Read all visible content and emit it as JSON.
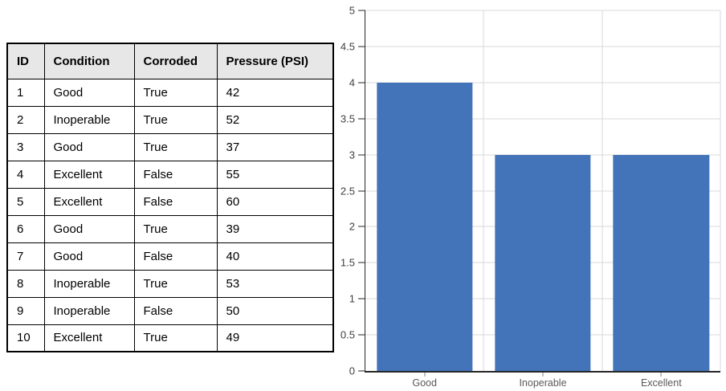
{
  "table": {
    "headers": [
      "ID",
      "Condition",
      "Corroded",
      "Pressure (PSI)"
    ],
    "rows": [
      [
        "1",
        "Good",
        "True",
        "42"
      ],
      [
        "2",
        "Inoperable",
        "True",
        "52"
      ],
      [
        "3",
        "Good",
        "True",
        "37"
      ],
      [
        "4",
        "Excellent",
        "False",
        "55"
      ],
      [
        "5",
        "Excellent",
        "False",
        "60"
      ],
      [
        "6",
        "Good",
        "True",
        "39"
      ],
      [
        "7",
        "Good",
        "False",
        "40"
      ],
      [
        "8",
        "Inoperable",
        "True",
        "53"
      ],
      [
        "9",
        "Inoperable",
        "False",
        "50"
      ],
      [
        "10",
        "Excellent",
        "True",
        "49"
      ]
    ],
    "header_bg": "#e7e7e7",
    "border_color": "#000000"
  },
  "chart_data": {
    "type": "bar",
    "categories": [
      "Good",
      "Inoperable",
      "Excellent"
    ],
    "values": [
      4,
      3,
      3
    ],
    "title": "",
    "xlabel": "",
    "ylabel": "",
    "ylim": [
      0,
      5
    ],
    "ytick_step": 0.5,
    "ytick_labels": [
      "0",
      "0.5",
      "1",
      "1.5",
      "2",
      "2.5",
      "3",
      "3.5",
      "4",
      "4.5",
      "5"
    ],
    "grid": true,
    "legend_position": "none",
    "bar_color": "#4373b9",
    "gridline_color": "#d9d9d9",
    "axis_color": "#262626",
    "tick_color": "#808080",
    "ylabel_color": "#404040",
    "xlabel_color": "#595959"
  }
}
